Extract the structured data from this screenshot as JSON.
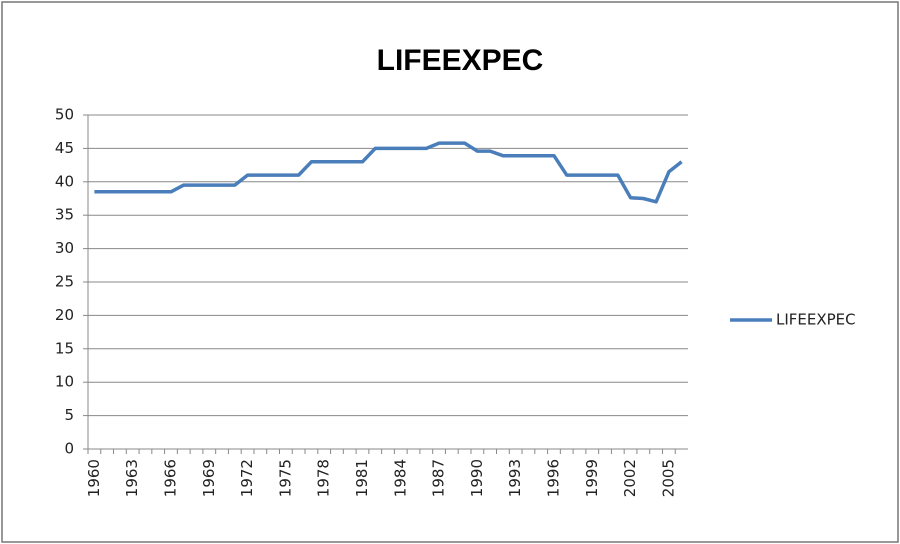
{
  "chart_data": {
    "type": "line",
    "title": "LIFEEXPEC",
    "categories": [
      "1960",
      null,
      null,
      "1963",
      null,
      null,
      "1966",
      null,
      null,
      "1969",
      null,
      null,
      "1972",
      null,
      null,
      "1975",
      null,
      null,
      "1978",
      null,
      null,
      "1981",
      null,
      null,
      "1984",
      null,
      null,
      "1987",
      null,
      null,
      "1990",
      null,
      null,
      "1993",
      null,
      null,
      "1996",
      null,
      null,
      "1999",
      null,
      null,
      "2002",
      null,
      null,
      "2005",
      null
    ],
    "series": [
      {
        "name": "LIFEEXPEC",
        "color": "#4a7ebb",
        "values": [
          38.5,
          38.5,
          38.5,
          38.5,
          38.5,
          38.5,
          38.5,
          39.5,
          39.5,
          39.5,
          39.5,
          39.5,
          41,
          41,
          41,
          41,
          41,
          43,
          43,
          43,
          43,
          43,
          45,
          45,
          45,
          45,
          45,
          45.8,
          45.8,
          45.8,
          44.6,
          44.6,
          43.9,
          43.9,
          43.9,
          43.9,
          43.9,
          41,
          41,
          41,
          41,
          41,
          37.6,
          37.5,
          37,
          41.5,
          43
        ]
      }
    ],
    "ylim": [
      0,
      50
    ],
    "yticks": [
      0,
      5,
      10,
      15,
      20,
      25,
      30,
      35,
      40,
      45,
      50
    ],
    "grid": true,
    "legend": "right"
  }
}
